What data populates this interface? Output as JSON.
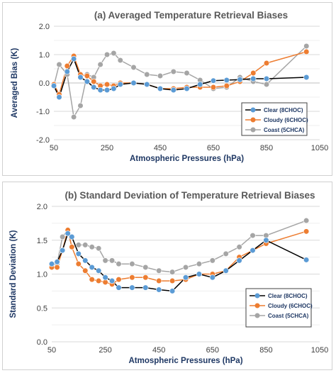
{
  "chart_data": [
    {
      "type": "line",
      "title": "(a) Averaged Temperature Retrieval Biases",
      "xlabel": "Atmospheric Pressures (hPa)",
      "ylabel": "Averaged Bias (K)",
      "xlim": [
        50,
        1050
      ],
      "ylim": [
        -2.0,
        2.0
      ],
      "xticks": [
        "50",
        "250",
        "450",
        "650",
        "850",
        "1050"
      ],
      "yticks": [
        "-2.0",
        "-1.0",
        "0.0",
        "1.0",
        "2.0"
      ],
      "grid": "horizontal",
      "legend_position": "bottom-right",
      "series": [
        {
          "name": "Clear (8CHOC)",
          "color": "#5b9bd5",
          "x": [
            50,
            70,
            100,
            125,
            150,
            175,
            200,
            225,
            250,
            275,
            300,
            350,
            400,
            450,
            500,
            550,
            600,
            650,
            700,
            750,
            800,
            850,
            1000
          ],
          "y": [
            -0.1,
            -0.5,
            0.4,
            0.85,
            0.2,
            0.05,
            -0.15,
            -0.25,
            -0.25,
            -0.2,
            -0.05,
            0.0,
            -0.05,
            -0.2,
            -0.25,
            -0.2,
            -0.05,
            0.08,
            0.1,
            0.12,
            0.15,
            0.15,
            0.2
          ]
        },
        {
          "name": "Cloudy (6CHOC)",
          "color": "#ed7d31",
          "x": [
            50,
            70,
            100,
            125,
            150,
            175,
            200,
            225,
            250,
            275,
            300,
            350,
            400,
            450,
            500,
            550,
            600,
            650,
            700,
            750,
            800,
            850,
            1000
          ],
          "y": [
            -0.05,
            -0.4,
            0.6,
            0.95,
            0.3,
            0.25,
            0.05,
            -0.1,
            -0.05,
            -0.1,
            0.0,
            0.0,
            -0.05,
            -0.2,
            -0.2,
            -0.15,
            -0.15,
            -0.15,
            -0.1,
            0.05,
            0.35,
            0.7,
            1.1
          ]
        },
        {
          "name": "Coast (5CHCA)",
          "color": "#a5a5a5",
          "x": [
            50,
            70,
            100,
            125,
            150,
            175,
            200,
            225,
            250,
            275,
            300,
            350,
            400,
            450,
            500,
            550,
            600,
            650,
            700,
            750,
            800,
            850,
            1000
          ],
          "y": [
            -0.1,
            0.65,
            0.3,
            -1.2,
            -0.8,
            0.3,
            0.2,
            0.65,
            1.0,
            1.05,
            0.8,
            0.55,
            0.3,
            0.25,
            0.4,
            0.35,
            0.1,
            -0.2,
            -0.15,
            0.2,
            0.05,
            -0.05,
            1.3
          ]
        }
      ]
    },
    {
      "type": "line",
      "title": "(b) Standard Deviation of Temperature Retrieval Biases",
      "xlabel": "Atmospheric Pressures (hPa)",
      "ylabel": "Standard Deviation (K)",
      "xlim": [
        50,
        1050
      ],
      "ylim": [
        0.0,
        2.0
      ],
      "xticks": [
        "50",
        "250",
        "450",
        "650",
        "850",
        "1050"
      ],
      "yticks": [
        "0.0",
        "0.5",
        "1.0",
        "1.5",
        "2.0"
      ],
      "grid": "horizontal",
      "legend_position": "bottom-right",
      "series": [
        {
          "name": "Clear (8CHOC)",
          "color": "#5b9bd5",
          "x": [
            50,
            70,
            90,
            110,
            125,
            150,
            175,
            200,
            225,
            250,
            275,
            300,
            350,
            400,
            450,
            500,
            550,
            600,
            650,
            700,
            750,
            800,
            850,
            1000
          ],
          "y": [
            1.15,
            1.18,
            1.35,
            1.6,
            1.55,
            1.3,
            1.2,
            1.1,
            1.05,
            0.95,
            0.9,
            0.8,
            0.8,
            0.8,
            0.77,
            0.75,
            0.95,
            1.0,
            0.95,
            1.05,
            1.2,
            1.35,
            1.5,
            1.21
          ]
        },
        {
          "name": "Cloudy (6CHOC)",
          "color": "#ed7d31",
          "x": [
            50,
            70,
            90,
            110,
            125,
            150,
            175,
            200,
            225,
            250,
            275,
            300,
            350,
            400,
            450,
            500,
            550,
            600,
            650,
            700,
            750,
            800,
            850,
            1000
          ],
          "y": [
            1.1,
            1.1,
            1.35,
            1.65,
            1.4,
            1.15,
            1.05,
            0.92,
            0.9,
            0.88,
            0.85,
            0.92,
            0.95,
            0.95,
            0.9,
            0.9,
            0.92,
            1.0,
            1.0,
            1.05,
            1.25,
            1.35,
            1.45,
            1.63
          ]
        },
        {
          "name": "Coast (5CHCA)",
          "color": "#a5a5a5",
          "x": [
            50,
            70,
            90,
            110,
            125,
            150,
            175,
            200,
            225,
            250,
            275,
            300,
            350,
            400,
            450,
            500,
            550,
            600,
            650,
            700,
            750,
            800,
            850,
            1000
          ],
          "y": [
            1.12,
            1.15,
            1.55,
            1.65,
            1.4,
            1.43,
            1.43,
            1.4,
            1.38,
            1.2,
            1.2,
            1.15,
            1.15,
            1.1,
            1.05,
            1.03,
            1.1,
            1.15,
            1.2,
            1.3,
            1.4,
            1.57,
            1.57,
            1.79
          ]
        }
      ]
    }
  ]
}
